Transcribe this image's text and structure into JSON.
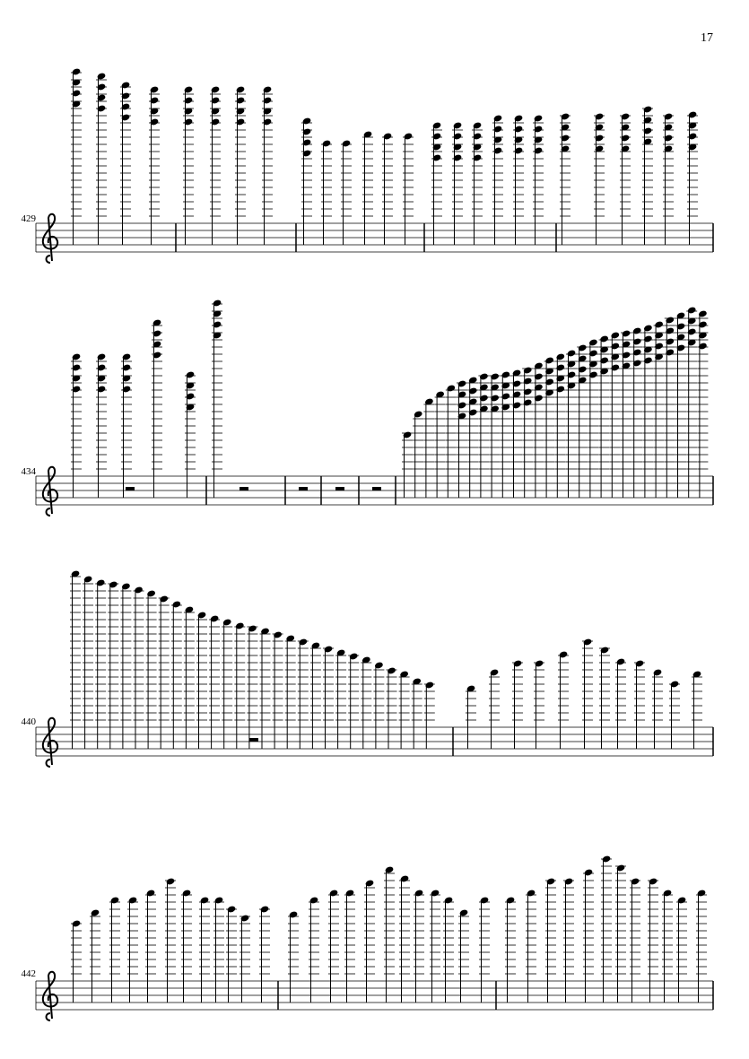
{
  "page_number": "17",
  "measure_numbers": [
    "429",
    "434",
    "440",
    "442"
  ]
}
